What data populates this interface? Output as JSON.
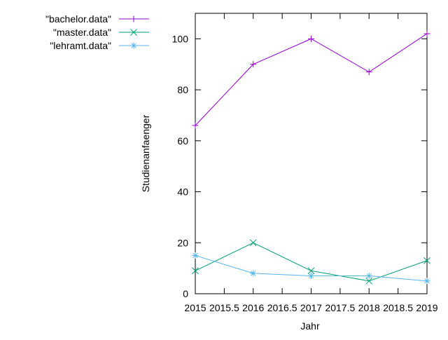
{
  "chart_data": {
    "type": "line",
    "title": "",
    "xlabel": "Jahr",
    "ylabel": "Studienanfaenger",
    "xlim": [
      2015,
      2019
    ],
    "ylim": [
      0,
      110
    ],
    "x_ticks": [
      2015,
      2015.5,
      2016,
      2016.5,
      2017,
      2017.5,
      2018,
      2018.5,
      2019
    ],
    "x_tick_labels": [
      "2015",
      "2015.5",
      "2016",
      "2016.5",
      "2017",
      "2017.5",
      "2018",
      "2018.5",
      "2019"
    ],
    "y_ticks": [
      0,
      20,
      40,
      60,
      80,
      100
    ],
    "y_tick_labels": [
      "0",
      "20",
      "40",
      "60",
      "80",
      "100"
    ],
    "x": [
      2015,
      2016,
      2017,
      2018,
      2019
    ],
    "grid": false,
    "legend_position": "outside top-left",
    "series": [
      {
        "name": "\"bachelor.data\"",
        "values": [
          66,
          90,
          100,
          87,
          102
        ],
        "color": "#9400d3",
        "marker": "plus"
      },
      {
        "name": "\"master.data\"",
        "values": [
          9,
          20,
          9,
          5,
          13
        ],
        "color": "#009e73",
        "marker": "cross"
      },
      {
        "name": "\"lehramt.data\"",
        "values": [
          15,
          8,
          7,
          7,
          5
        ],
        "color": "#56b4e9",
        "marker": "star"
      }
    ]
  }
}
